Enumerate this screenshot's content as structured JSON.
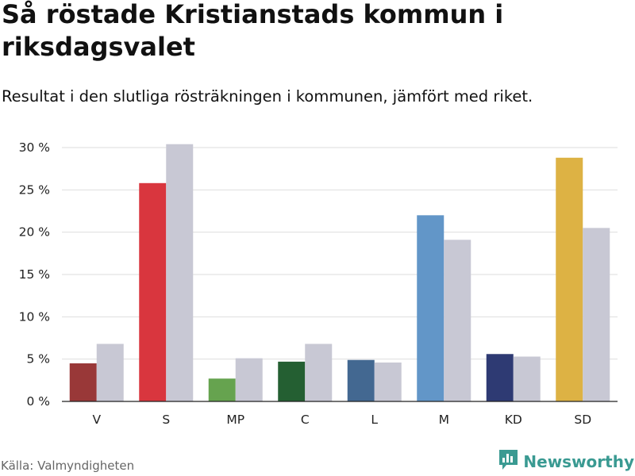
{
  "title": "Så röstade Kristianstads kommun i riksdagsvalet",
  "subtitle": "Resultat i den slutliga rösträkningen i kommunen, jämfört med riket.",
  "source": "Källa: Valmyndigheten",
  "brand": {
    "name": "Newsworthy",
    "icon": "newsworthy-logo-icon"
  },
  "colors": {
    "national": "#c8c8d4",
    "grid": "#dedede",
    "axis": "#222222",
    "brand": "#3a9a92"
  },
  "chart_data": {
    "type": "bar",
    "title": "Så röstade Kristianstads kommun i riksdagsvalet",
    "xlabel": "",
    "ylabel": "",
    "ylim": [
      0,
      30
    ],
    "yticks": [
      0,
      5,
      10,
      15,
      20,
      25,
      30
    ],
    "ytick_labels": [
      "0 %",
      "5 %",
      "10 %",
      "15 %",
      "20 %",
      "25 %",
      "30 %"
    ],
    "grid": true,
    "legend": "none",
    "categories": [
      "V",
      "S",
      "MP",
      "C",
      "L",
      "M",
      "KD",
      "SD"
    ],
    "series": [
      {
        "name": "Kristianstads kommun",
        "values": [
          4.5,
          25.8,
          2.7,
          4.7,
          4.9,
          22.0,
          5.6,
          28.8
        ],
        "colors": [
          "#993838",
          "#d9363e",
          "#66a34f",
          "#245f32",
          "#436891",
          "#6296c8",
          "#2e3a73",
          "#ddb244"
        ]
      },
      {
        "name": "Riket",
        "values": [
          6.8,
          30.4,
          5.1,
          6.8,
          4.6,
          19.1,
          5.3,
          20.5
        ],
        "color": "#c8c8d4"
      }
    ]
  }
}
